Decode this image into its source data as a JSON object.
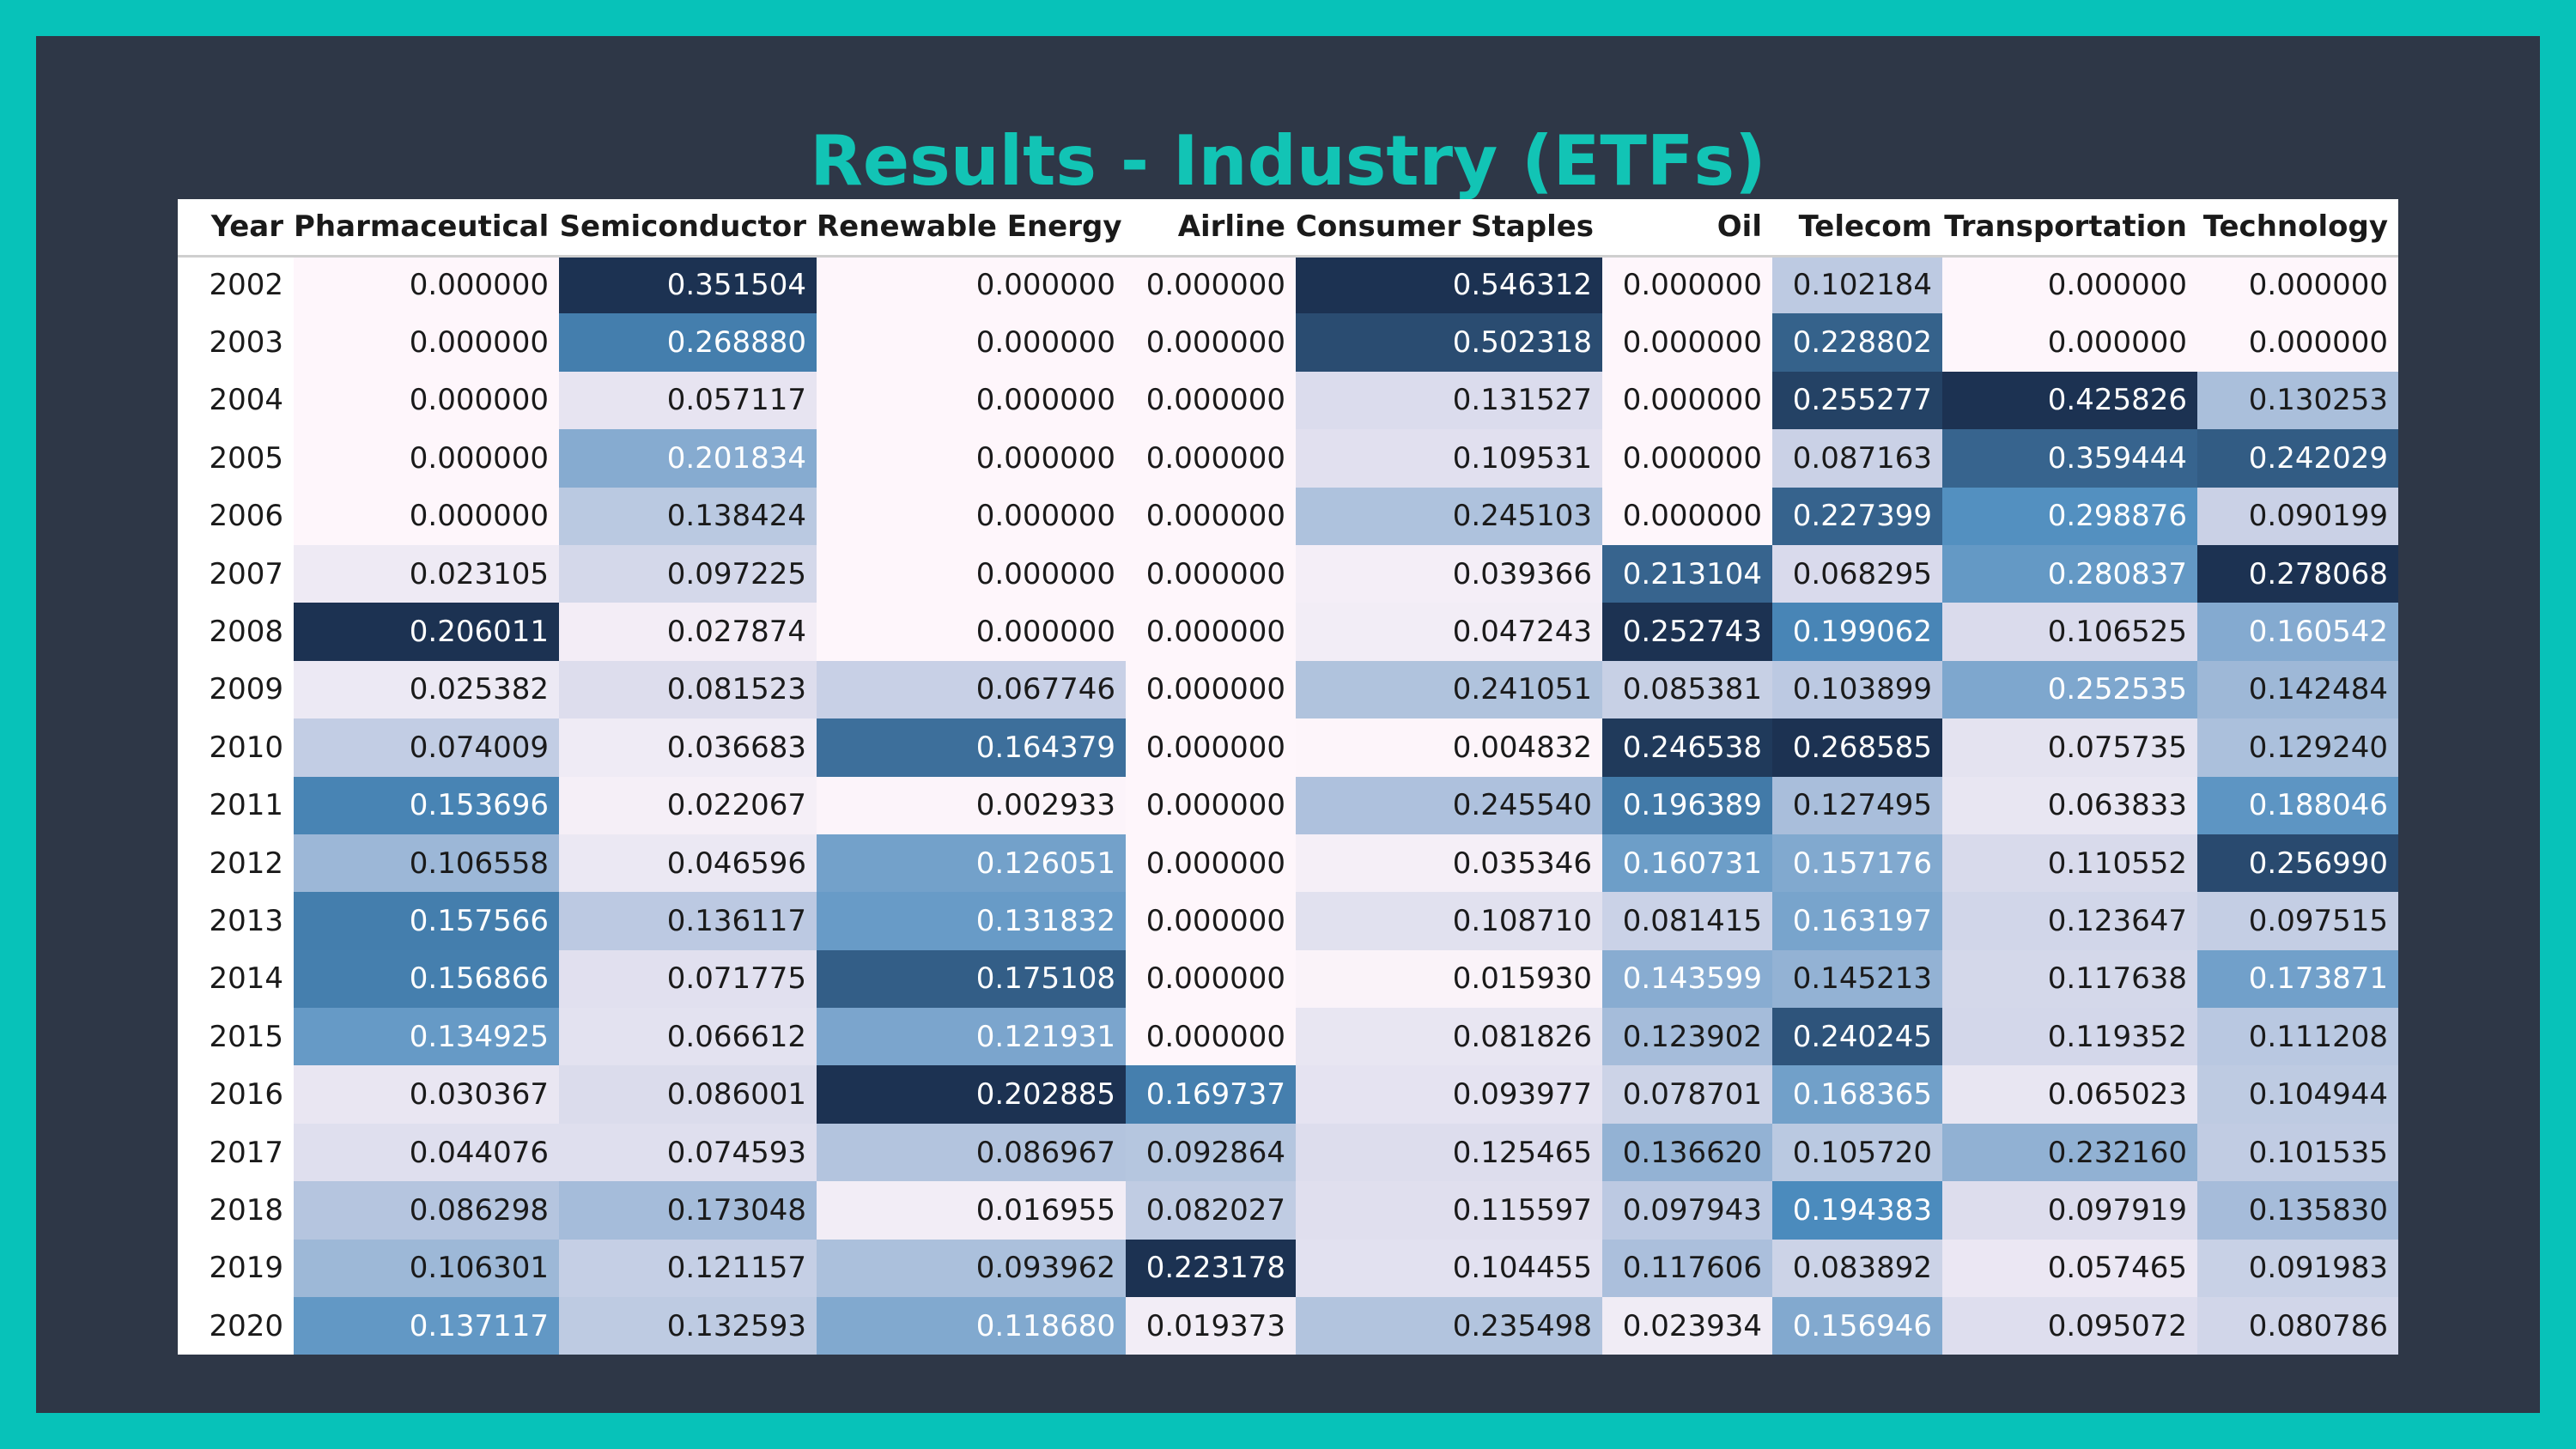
{
  "title": "Results - Industry (ETFs)",
  "table": {
    "columns": [
      "Year",
      "Pharmaceutical",
      "Semiconductor",
      "Renewable Energy",
      "Airline",
      "Consumer Staples",
      "Oil",
      "Telecom",
      "Transportation",
      "Technology"
    ],
    "rows": [
      [
        "2002",
        "0.000000",
        "0.351504",
        "0.000000",
        "0.000000",
        "0.546312",
        "0.000000",
        "0.102184",
        "0.000000",
        "0.000000"
      ],
      [
        "2003",
        "0.000000",
        "0.268880",
        "0.000000",
        "0.000000",
        "0.502318",
        "0.000000",
        "0.228802",
        "0.000000",
        "0.000000"
      ],
      [
        "2004",
        "0.000000",
        "0.057117",
        "0.000000",
        "0.000000",
        "0.131527",
        "0.000000",
        "0.255277",
        "0.425826",
        "0.130253"
      ],
      [
        "2005",
        "0.000000",
        "0.201834",
        "0.000000",
        "0.000000",
        "0.109531",
        "0.000000",
        "0.087163",
        "0.359444",
        "0.242029"
      ],
      [
        "2006",
        "0.000000",
        "0.138424",
        "0.000000",
        "0.000000",
        "0.245103",
        "0.000000",
        "0.227399",
        "0.298876",
        "0.090199"
      ],
      [
        "2007",
        "0.023105",
        "0.097225",
        "0.000000",
        "0.000000",
        "0.039366",
        "0.213104",
        "0.068295",
        "0.280837",
        "0.278068"
      ],
      [
        "2008",
        "0.206011",
        "0.027874",
        "0.000000",
        "0.000000",
        "0.047243",
        "0.252743",
        "0.199062",
        "0.106525",
        "0.160542"
      ],
      [
        "2009",
        "0.025382",
        "0.081523",
        "0.067746",
        "0.000000",
        "0.241051",
        "0.085381",
        "0.103899",
        "0.252535",
        "0.142484"
      ],
      [
        "2010",
        "0.074009",
        "0.036683",
        "0.164379",
        "0.000000",
        "0.004832",
        "0.246538",
        "0.268585",
        "0.075735",
        "0.129240"
      ],
      [
        "2011",
        "0.153696",
        "0.022067",
        "0.002933",
        "0.000000",
        "0.245540",
        "0.196389",
        "0.127495",
        "0.063833",
        "0.188046"
      ],
      [
        "2012",
        "0.106558",
        "0.046596",
        "0.126051",
        "0.000000",
        "0.035346",
        "0.160731",
        "0.157176",
        "0.110552",
        "0.256990"
      ],
      [
        "2013",
        "0.157566",
        "0.136117",
        "0.131832",
        "0.000000",
        "0.108710",
        "0.081415",
        "0.163197",
        "0.123647",
        "0.097515"
      ],
      [
        "2014",
        "0.156866",
        "0.071775",
        "0.175108",
        "0.000000",
        "0.015930",
        "0.143599",
        "0.145213",
        "0.117638",
        "0.173871"
      ],
      [
        "2015",
        "0.134925",
        "0.066612",
        "0.121931",
        "0.000000",
        "0.081826",
        "0.123902",
        "0.240245",
        "0.119352",
        "0.111208"
      ],
      [
        "2016",
        "0.030367",
        "0.086001",
        "0.202885",
        "0.169737",
        "0.093977",
        "0.078701",
        "0.168365",
        "0.065023",
        "0.104944"
      ],
      [
        "2017",
        "0.044076",
        "0.074593",
        "0.086967",
        "0.092864",
        "0.125465",
        "0.136620",
        "0.105720",
        "0.232160",
        "0.101535"
      ],
      [
        "2018",
        "0.086298",
        "0.173048",
        "0.016955",
        "0.082027",
        "0.115597",
        "0.097943",
        "0.194383",
        "0.097919",
        "0.135830"
      ],
      [
        "2019",
        "0.106301",
        "0.121157",
        "0.093962",
        "0.223178",
        "0.104455",
        "0.117606",
        "0.083892",
        "0.057465",
        "0.091983"
      ],
      [
        "2020",
        "0.137117",
        "0.132593",
        "0.118680",
        "0.019373",
        "0.235498",
        "0.023934",
        "0.156946",
        "0.095072",
        "0.080786"
      ]
    ]
  }
}
